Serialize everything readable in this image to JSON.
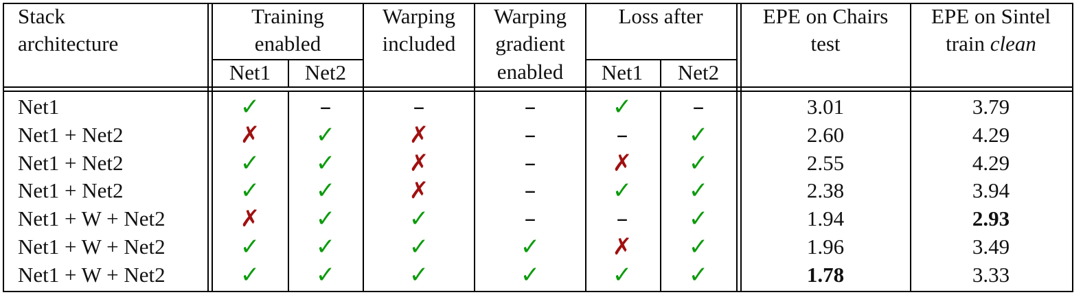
{
  "header": {
    "stack_architecture": [
      "Stack",
      "architecture"
    ],
    "training_enabled": [
      "Training",
      "enabled"
    ],
    "warping_included": [
      "Warping",
      "included"
    ],
    "warping_gradient_enabled": [
      "Warping",
      "gradient",
      "enabled"
    ],
    "loss_after": "Loss after",
    "epe_chairs": [
      "EPE on Chairs",
      "test"
    ],
    "epe_sintel_line1": "EPE on Sintel",
    "epe_sintel_line2_prefix": "train ",
    "epe_sintel_line2_italic": "clean",
    "net1": "Net1",
    "net2": "Net2"
  },
  "symbols": {
    "check": "✓",
    "cross": "✗",
    "dash": "–"
  },
  "rows": [
    {
      "arch": "Net1",
      "train_net1": "check",
      "train_net2": "dash",
      "warp_incl": "dash",
      "warp_grad": "dash",
      "loss_net1": "check",
      "loss_net2": "dash",
      "epe_chairs": "3.01",
      "epe_sintel": "3.79",
      "bold_chairs": false,
      "bold_sintel": false
    },
    {
      "arch": "Net1 + Net2",
      "train_net1": "cross",
      "train_net2": "check",
      "warp_incl": "cross",
      "warp_grad": "dash",
      "loss_net1": "dash",
      "loss_net2": "check",
      "epe_chairs": "2.60",
      "epe_sintel": "4.29",
      "bold_chairs": false,
      "bold_sintel": false
    },
    {
      "arch": "Net1 + Net2",
      "train_net1": "check",
      "train_net2": "check",
      "warp_incl": "cross",
      "warp_grad": "dash",
      "loss_net1": "cross",
      "loss_net2": "check",
      "epe_chairs": "2.55",
      "epe_sintel": "4.29",
      "bold_chairs": false,
      "bold_sintel": false
    },
    {
      "arch": "Net1 + Net2",
      "train_net1": "check",
      "train_net2": "check",
      "warp_incl": "cross",
      "warp_grad": "dash",
      "loss_net1": "check",
      "loss_net2": "check",
      "epe_chairs": "2.38",
      "epe_sintel": "3.94",
      "bold_chairs": false,
      "bold_sintel": false
    },
    {
      "arch": "Net1 + W + Net2",
      "train_net1": "cross",
      "train_net2": "check",
      "warp_incl": "check",
      "warp_grad": "dash",
      "loss_net1": "dash",
      "loss_net2": "check",
      "epe_chairs": "1.94",
      "epe_sintel": "2.93",
      "bold_chairs": false,
      "bold_sintel": true
    },
    {
      "arch": "Net1 + W + Net2",
      "train_net1": "check",
      "train_net2": "check",
      "warp_incl": "check",
      "warp_grad": "check",
      "loss_net1": "cross",
      "loss_net2": "check",
      "epe_chairs": "1.96",
      "epe_sintel": "3.49",
      "bold_chairs": false,
      "bold_sintel": false
    },
    {
      "arch": "Net1 + W + Net2",
      "train_net1": "check",
      "train_net2": "check",
      "warp_incl": "check",
      "warp_grad": "check",
      "loss_net1": "check",
      "loss_net2": "check",
      "epe_chairs": "1.78",
      "epe_sintel": "3.33",
      "bold_chairs": true,
      "bold_sintel": false
    }
  ],
  "colors": {
    "check": "#0c9b0c",
    "cross": "#a01010"
  }
}
